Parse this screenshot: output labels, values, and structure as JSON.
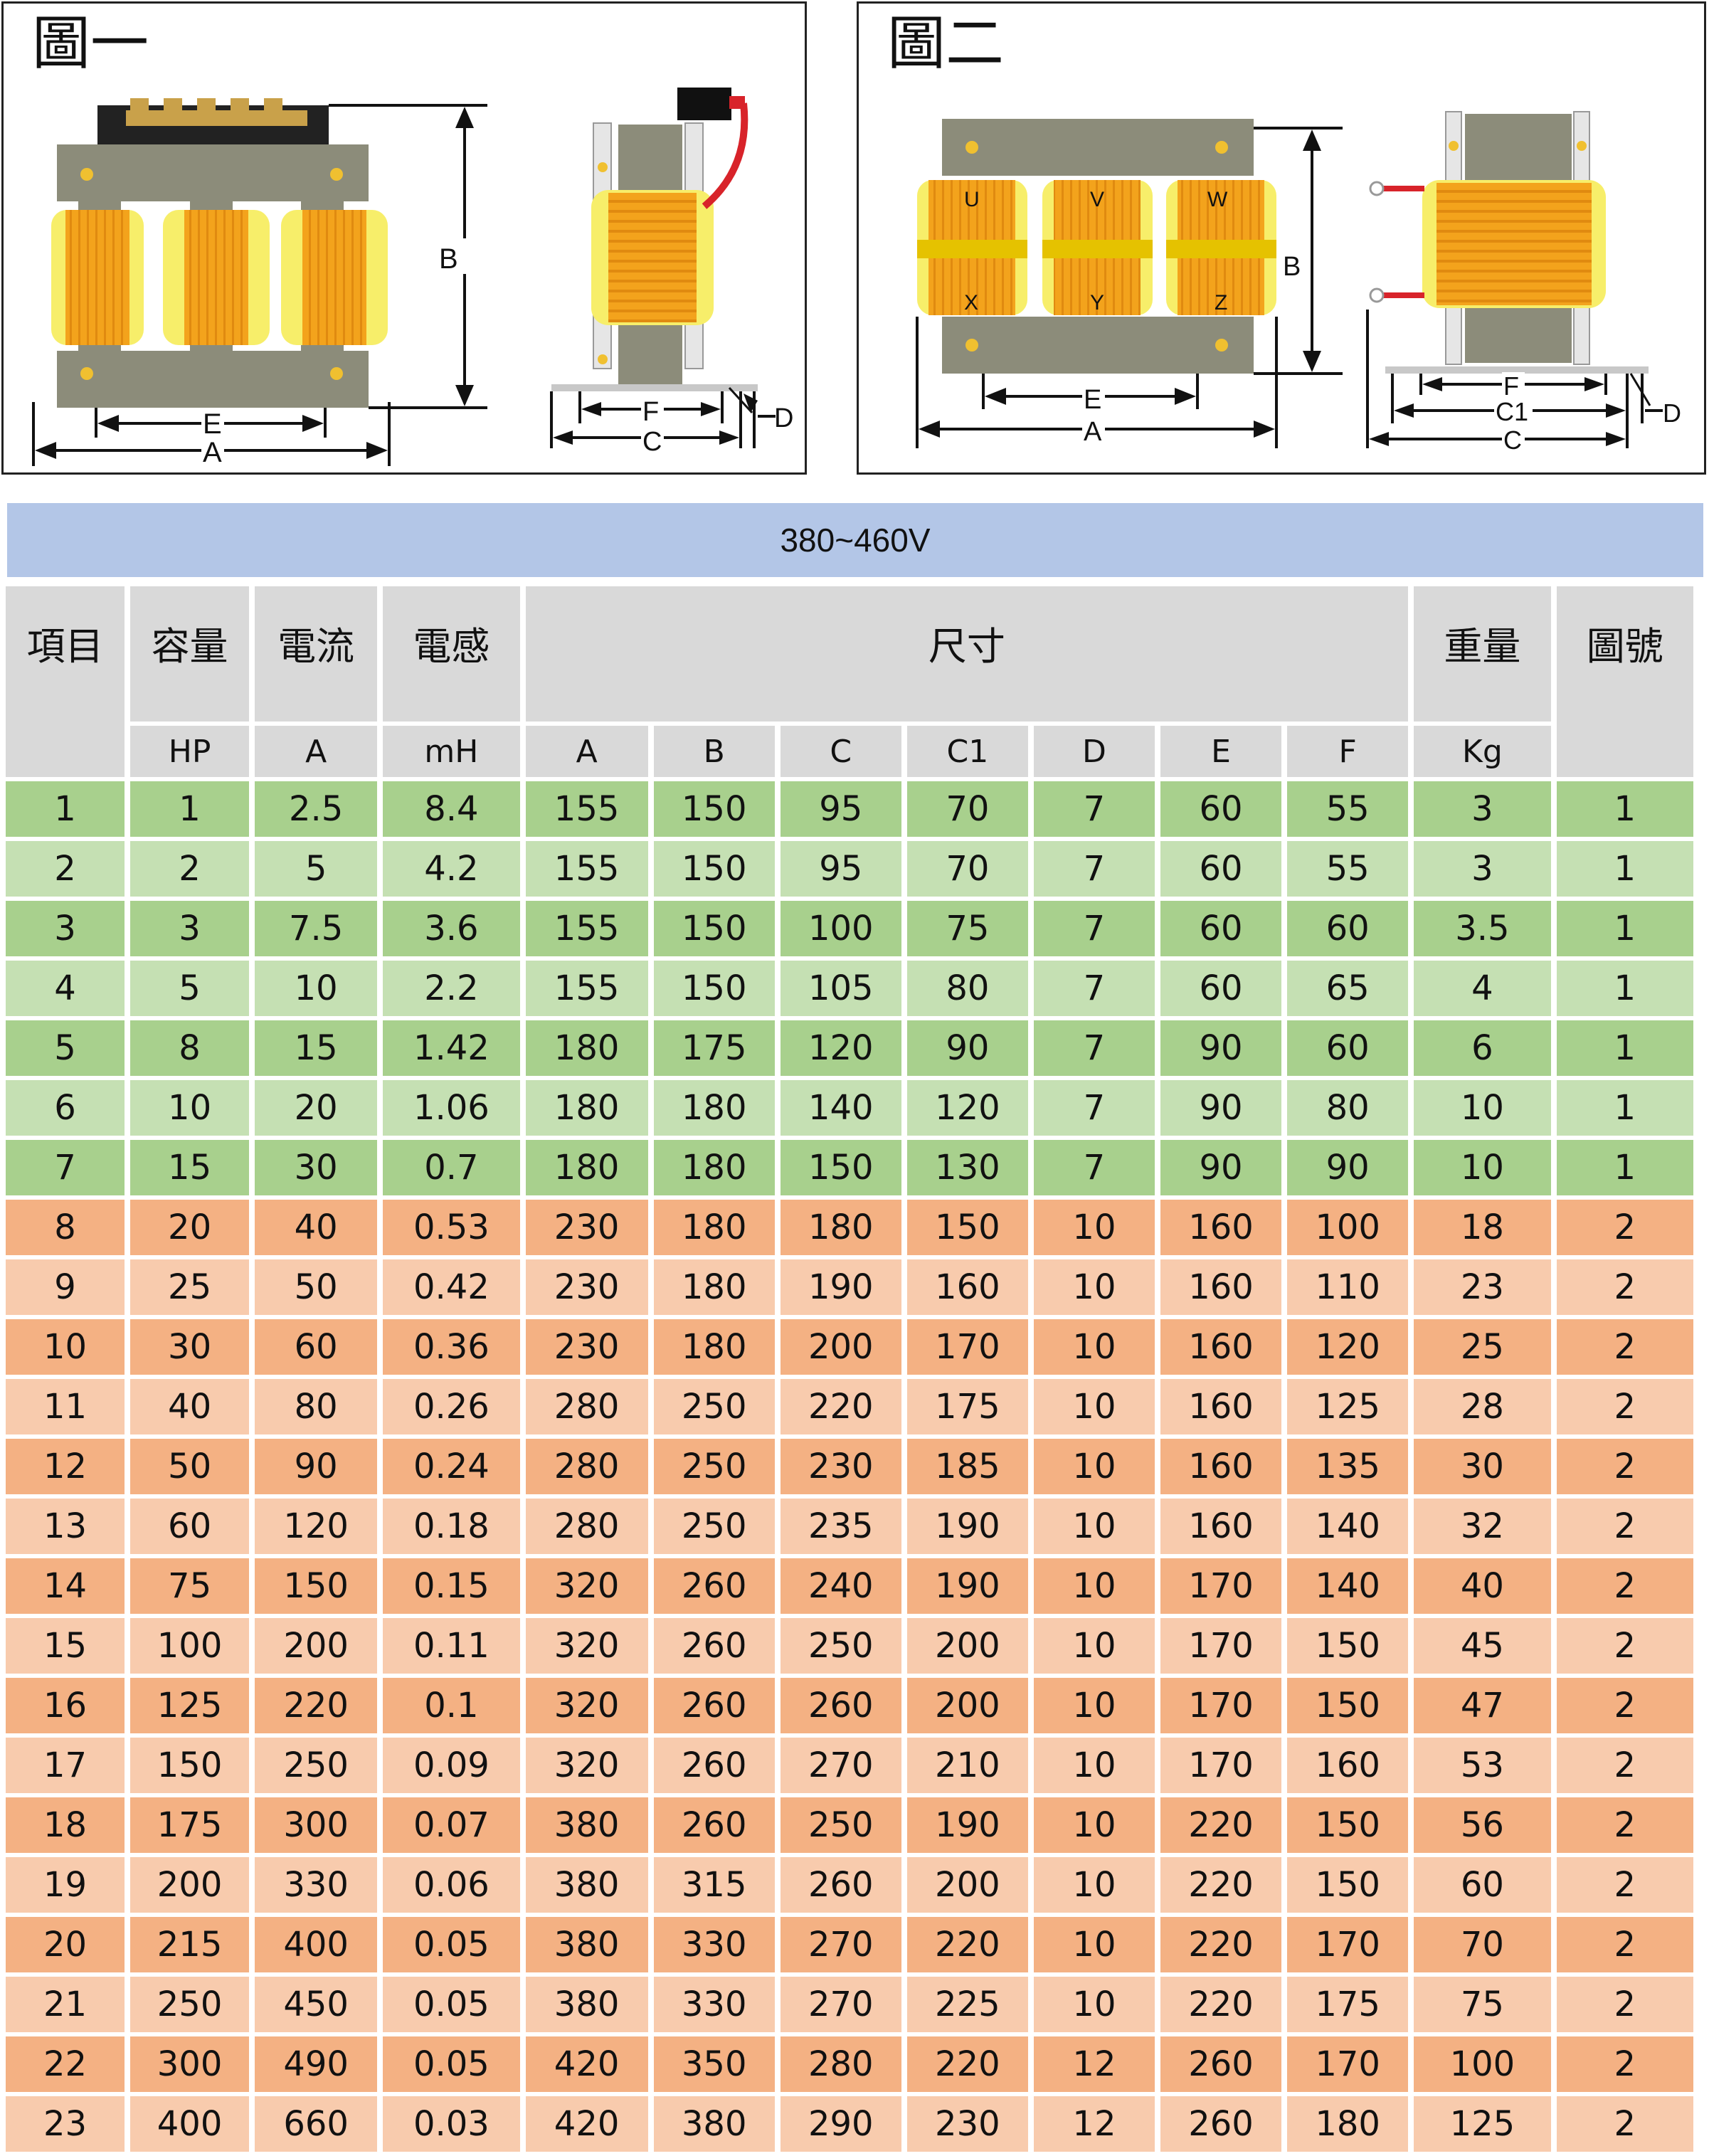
{
  "figures": {
    "fig1": {
      "title": "圖一",
      "dim_labels": {
        "A": "A",
        "B": "B",
        "C": "C",
        "D": "D",
        "E": "E",
        "F": "F"
      }
    },
    "fig2": {
      "title": "圖二",
      "dim_labels": {
        "A": "A",
        "B": "B",
        "C": "C",
        "C1": "C1",
        "D": "D",
        "E": "E",
        "F": "F"
      },
      "coil_labels": [
        "U",
        "V",
        "W",
        "X",
        "Y",
        "Z"
      ]
    }
  },
  "colors": {
    "core": "#8c8c7a",
    "coil": "#f3a31c",
    "coil_wrap": "#f7ee6a",
    "banner": "#b3c6e7",
    "green_dark": "#a8d08d",
    "green_light": "#c5e0b3",
    "orange_dark": "#f4b183",
    "orange_light": "#f8cbad",
    "header_gray": "#d9d9d9"
  },
  "banner": "380~460V",
  "table": {
    "header1": {
      "item": "項目",
      "capacity": "容量",
      "current": "電流",
      "inductance": "電感",
      "dimension": "尺寸",
      "weight": "重量",
      "figure_no": "圖號"
    },
    "header2": [
      "HP",
      "A",
      "mH",
      "A",
      "B",
      "C",
      "C1",
      "D",
      "E",
      "F",
      "Kg"
    ],
    "rows": [
      [
        "1",
        "1",
        "2.5",
        "8.4",
        "155",
        "150",
        "95",
        "70",
        "7",
        "60",
        "55",
        "3",
        "1"
      ],
      [
        "2",
        "2",
        "5",
        "4.2",
        "155",
        "150",
        "95",
        "70",
        "7",
        "60",
        "55",
        "3",
        "1"
      ],
      [
        "3",
        "3",
        "7.5",
        "3.6",
        "155",
        "150",
        "100",
        "75",
        "7",
        "60",
        "60",
        "3.5",
        "1"
      ],
      [
        "4",
        "5",
        "10",
        "2.2",
        "155",
        "150",
        "105",
        "80",
        "7",
        "60",
        "65",
        "4",
        "1"
      ],
      [
        "5",
        "8",
        "15",
        "1.42",
        "180",
        "175",
        "120",
        "90",
        "7",
        "90",
        "60",
        "6",
        "1"
      ],
      [
        "6",
        "10",
        "20",
        "1.06",
        "180",
        "180",
        "140",
        "120",
        "7",
        "90",
        "80",
        "10",
        "1"
      ],
      [
        "7",
        "15",
        "30",
        "0.7",
        "180",
        "180",
        "150",
        "130",
        "7",
        "90",
        "90",
        "10",
        "1"
      ],
      [
        "8",
        "20",
        "40",
        "0.53",
        "230",
        "180",
        "180",
        "150",
        "10",
        "160",
        "100",
        "18",
        "2"
      ],
      [
        "9",
        "25",
        "50",
        "0.42",
        "230",
        "180",
        "190",
        "160",
        "10",
        "160",
        "110",
        "23",
        "2"
      ],
      [
        "10",
        "30",
        "60",
        "0.36",
        "230",
        "180",
        "200",
        "170",
        "10",
        "160",
        "120",
        "25",
        "2"
      ],
      [
        "11",
        "40",
        "80",
        "0.26",
        "280",
        "250",
        "220",
        "175",
        "10",
        "160",
        "125",
        "28",
        "2"
      ],
      [
        "12",
        "50",
        "90",
        "0.24",
        "280",
        "250",
        "230",
        "185",
        "10",
        "160",
        "135",
        "30",
        "2"
      ],
      [
        "13",
        "60",
        "120",
        "0.18",
        "280",
        "250",
        "235",
        "190",
        "10",
        "160",
        "140",
        "32",
        "2"
      ],
      [
        "14",
        "75",
        "150",
        "0.15",
        "320",
        "260",
        "240",
        "190",
        "10",
        "170",
        "140",
        "40",
        "2"
      ],
      [
        "15",
        "100",
        "200",
        "0.11",
        "320",
        "260",
        "250",
        "200",
        "10",
        "170",
        "150",
        "45",
        "2"
      ],
      [
        "16",
        "125",
        "220",
        "0.1",
        "320",
        "260",
        "260",
        "200",
        "10",
        "170",
        "150",
        "47",
        "2"
      ],
      [
        "17",
        "150",
        "250",
        "0.09",
        "320",
        "260",
        "270",
        "210",
        "10",
        "170",
        "160",
        "53",
        "2"
      ],
      [
        "18",
        "175",
        "300",
        "0.07",
        "380",
        "260",
        "250",
        "190",
        "10",
        "220",
        "150",
        "56",
        "2"
      ],
      [
        "19",
        "200",
        "330",
        "0.06",
        "380",
        "315",
        "260",
        "200",
        "10",
        "220",
        "150",
        "60",
        "2"
      ],
      [
        "20",
        "215",
        "400",
        "0.05",
        "380",
        "330",
        "270",
        "220",
        "10",
        "220",
        "170",
        "70",
        "2"
      ],
      [
        "21",
        "250",
        "450",
        "0.05",
        "380",
        "330",
        "270",
        "225",
        "10",
        "220",
        "175",
        "75",
        "2"
      ],
      [
        "22",
        "300",
        "490",
        "0.05",
        "420",
        "350",
        "280",
        "220",
        "12",
        "260",
        "170",
        "100",
        "2"
      ],
      [
        "23",
        "400",
        "660",
        "0.03",
        "420",
        "380",
        "290",
        "230",
        "12",
        "260",
        "180",
        "125",
        "2"
      ]
    ]
  }
}
